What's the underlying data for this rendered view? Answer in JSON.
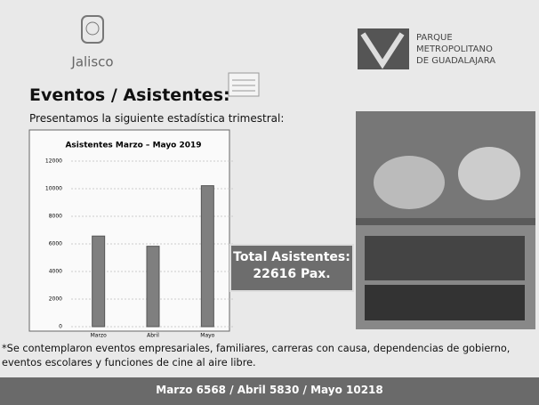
{
  "header": {
    "logo_left": "Jalisco",
    "logo_right": [
      "PARQUE",
      "METROPOLITANO",
      "DE GUADALAJARA"
    ]
  },
  "title": "Eventos / Asistentes:",
  "intro": "Presentamos la siguiente estadística trimestral:",
  "chart_data": {
    "type": "bar",
    "title": "Asistentes Marzo – Mayo 2019",
    "categories": [
      "Marzo",
      "Abril",
      "Mayo"
    ],
    "values": [
      6568,
      5830,
      10218
    ],
    "color": "#7f7f7f",
    "ylim": [
      0,
      12000
    ],
    "yticks": [
      0,
      2000,
      4000,
      6000,
      8000,
      10000,
      12000
    ],
    "grid": true
  },
  "total_box": {
    "label": "Total Asistentes:",
    "value": "22616 Pax."
  },
  "footnote": "*Se contemplaron eventos empresariales, familiares, carreras con causa, dependencias de gobierno, eventos escolares y funciones de cine al aire libre.",
  "footer": "Marzo 6568 / Abril 5830 / Mayo 10218"
}
